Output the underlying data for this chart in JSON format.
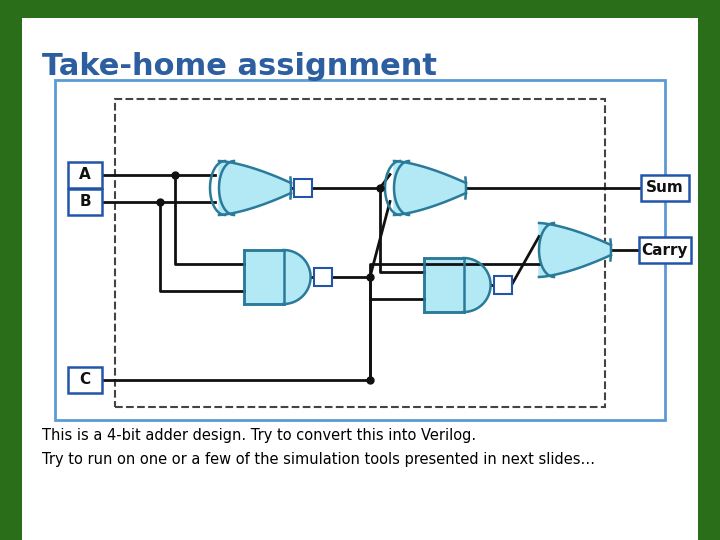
{
  "title": "Take-home assignment",
  "title_color": "#2d5fa0",
  "title_fontsize": 22,
  "bg_color": "#c8d8c8",
  "slide_bg": "white",
  "border_color": "#5b9bd5",
  "text_line1": "This is a 4-bit adder design. Try to convert this into Verilog.",
  "text_line2": "Try to run on one or a few of the simulation tools presented in next slides…",
  "text_color": "#000000",
  "text_fontsize": 10.5,
  "gate_fill": "#b3e8f5",
  "gate_edge": "#2a7a9a",
  "dashed_border": "#444444",
  "outer_border": "#5b9bd5",
  "green_color": "#2a6e1a",
  "wire_color": "#111111",
  "label_color": "#111111",
  "box_edge": "#2255aa"
}
